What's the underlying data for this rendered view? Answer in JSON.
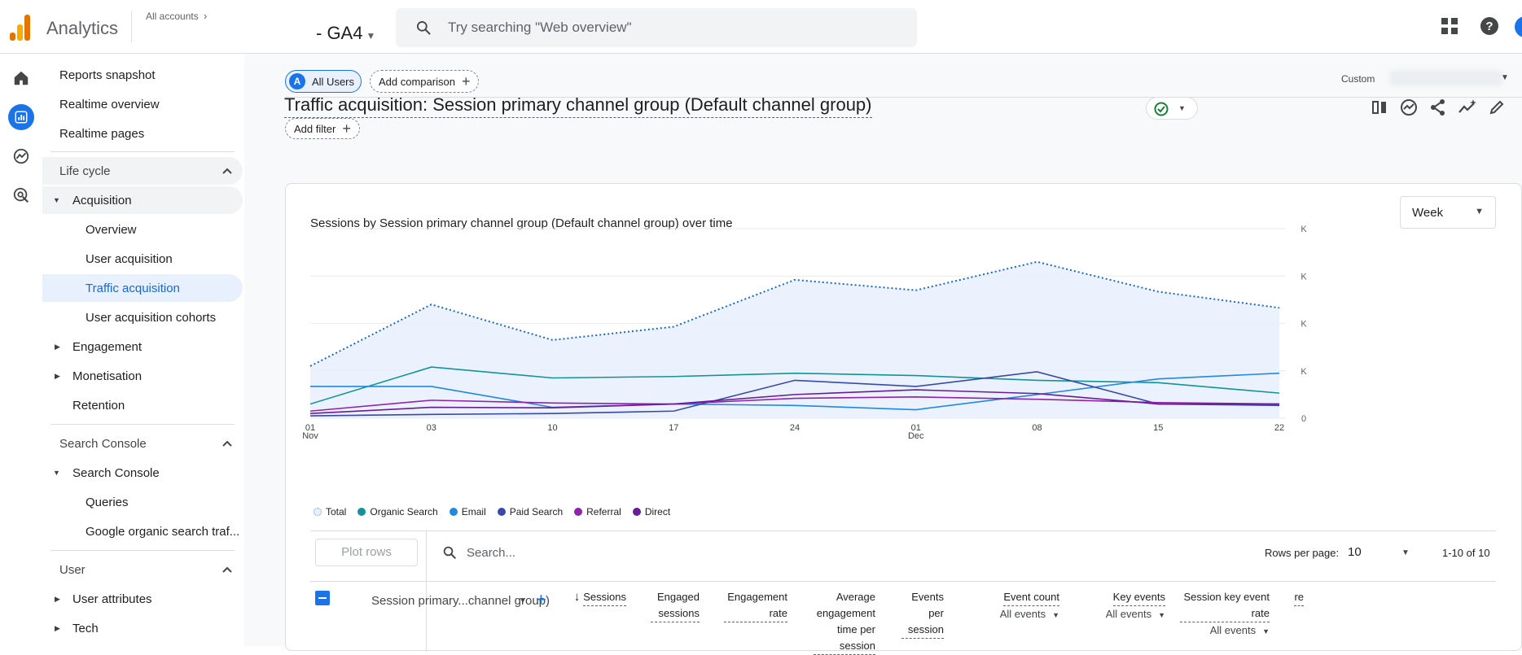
{
  "app": {
    "name": "Analytics",
    "all_accounts": "All accounts",
    "property": "- GA4",
    "search_placeholder": "Try searching \"Web overview\""
  },
  "nav": {
    "top_items": [
      "Reports snapshot",
      "Realtime overview",
      "Realtime pages"
    ],
    "lifecycle": "Life cycle",
    "acquisition": "Acquisition",
    "acquisition_items": [
      "Overview",
      "User acquisition",
      "Traffic acquisition",
      "User acquisition cohorts"
    ],
    "engagement": "Engagement",
    "monetisation": "Monetisation",
    "retention": "Retention",
    "search_console_head": "Search Console",
    "search_console": "Search Console",
    "search_console_items": [
      "Queries",
      "Google organic search traf..."
    ],
    "user_head": "User",
    "user_attributes": "User attributes",
    "tech": "Tech"
  },
  "toolbar": {
    "all_users": "All Users",
    "all_users_badge": "A",
    "add_comparison": "Add comparison",
    "custom": "Custom",
    "title": "Traffic acquisition: Session primary channel group (Default channel group)",
    "add_filter": "Add filter"
  },
  "chart_card": {
    "title": "Sessions by Session primary channel group (Default channel group) over time",
    "granularity": "Week"
  },
  "chart_data": {
    "type": "line",
    "title": "Sessions by Session primary channel group (Default channel group) over time",
    "x": [
      "01 Nov",
      "03",
      "10",
      "17",
      "24",
      "01 Dec",
      "08",
      "15",
      "22"
    ],
    "y_tick_labels": [
      "K",
      "K",
      "K",
      "K",
      "0"
    ],
    "grid": true,
    "legend_position": "bottom-left",
    "series": [
      {
        "name": "Total",
        "style": "dotted-area",
        "color": "#1967d2",
        "values": [
          1.1,
          2.4,
          1.65,
          1.93,
          2.92,
          2.7,
          3.3,
          2.67,
          2.33
        ]
      },
      {
        "name": "Organic Search",
        "color": "#12939a",
        "values": [
          0.3,
          1.08,
          0.85,
          0.88,
          0.95,
          0.9,
          0.8,
          0.75,
          0.53
        ]
      },
      {
        "name": "Email",
        "color": "#1e88e5",
        "values": [
          0.67,
          0.67,
          0.23,
          0.3,
          0.27,
          0.18,
          0.5,
          0.83,
          0.95
        ]
      },
      {
        "name": "Paid Search",
        "color": "#3949ab",
        "values": [
          0.05,
          0.08,
          0.1,
          0.15,
          0.8,
          0.67,
          0.98,
          0.3,
          0.27
        ]
      },
      {
        "name": "Referral",
        "color": "#8e24aa",
        "values": [
          0.15,
          0.38,
          0.32,
          0.3,
          0.42,
          0.45,
          0.4,
          0.33,
          0.3
        ]
      },
      {
        "name": "Direct",
        "color": "#6a1b9a",
        "values": [
          0.1,
          0.23,
          0.22,
          0.3,
          0.5,
          0.6,
          0.52,
          0.3,
          0.3
        ]
      }
    ],
    "colors": {
      "Total": "#5e97f6",
      "Organic Search": "#12939a",
      "Email": "#1e88e5",
      "Paid Search": "#3949ab",
      "Referral": "#8e24aa",
      "Direct": "#6a1b9a"
    }
  },
  "table": {
    "plot_rows": "Plot rows",
    "search_placeholder": "Search...",
    "rows_per_page_label": "Rows per page:",
    "rows_per_page": "10",
    "range": "1-10 of 10",
    "dimension_header": "Session primary...channel group)",
    "columns": [
      {
        "title": "Sessions",
        "sub": ""
      },
      {
        "title": "Engaged sessions",
        "sub": ""
      },
      {
        "title": "Engagement rate",
        "sub": ""
      },
      {
        "title": "Average engagement time per session",
        "sub": ""
      },
      {
        "title": "Events per session",
        "sub": ""
      },
      {
        "title": "Event count",
        "sub": "All events"
      },
      {
        "title": "Key events",
        "sub": "All events"
      },
      {
        "title": "Session key event rate",
        "sub": "All events"
      },
      {
        "title": "re",
        "sub": ""
      }
    ]
  }
}
